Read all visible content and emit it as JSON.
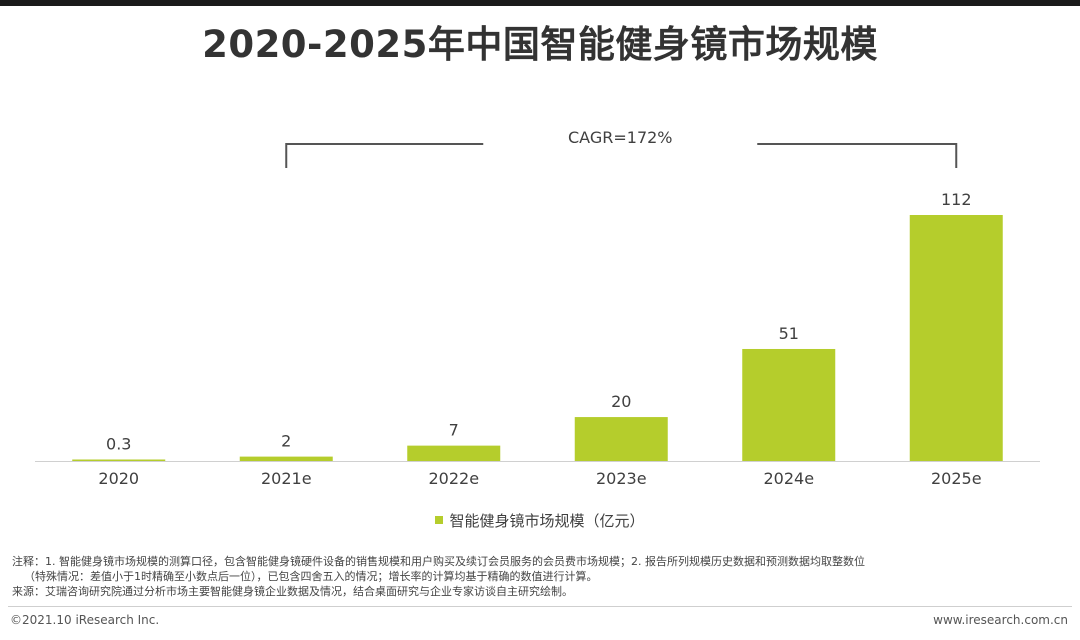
{
  "title": "2020-2025年中国智能健身镜市场规模",
  "chart_data": {
    "type": "bar",
    "categories": [
      "2020",
      "2021e",
      "2022e",
      "2023e",
      "2024e",
      "2025e"
    ],
    "values": [
      0.3,
      2,
      7,
      20,
      51,
      112
    ],
    "value_labels": [
      "0.3",
      "2",
      "7",
      "20",
      "51",
      "112"
    ],
    "series_name": "智能健身镜市场规模（亿元）",
    "ylim": [
      0,
      112
    ],
    "grid": false,
    "legend_position": "bottom-center",
    "annotation": "CAGR=172%",
    "bar_color": "#b5cd2c"
  },
  "notes": {
    "line1": "注释：1. 智能健身镜市场规模的测算口径，包含智能健身镜硬件设备的销售规模和用户购买及续订会员服务的会员费市场规模；2. 报告所列规模历史数据和预测数据均取整数位",
    "line2": "（特殊情况：差值小于1时精确至小数点后一位），已包含四舍五入的情况；增长率的计算均基于精确的数值进行计算。",
    "source": "来源：艾瑞咨询研究院通过分析市场主要智能健身镜企业数据及情况，结合桌面研究与企业专家访谈自主研究绘制。"
  },
  "footer": {
    "copyright": "©2021.10 iResearch Inc.",
    "website": "www.iresearch.com.cn"
  }
}
